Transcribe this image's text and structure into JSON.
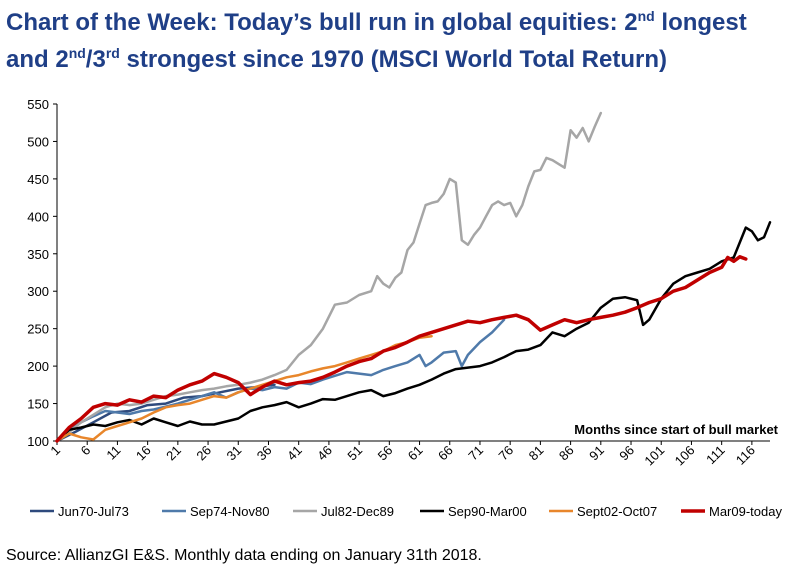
{
  "title": {
    "line1_prefix": "Chart of the Week: Today’s bull run in global equities: 2",
    "line1_sup": "nd",
    "line1_suffix": " longest",
    "line2_a": "and 2",
    "line2_sup1": "nd",
    "line2_b": "/3",
    "line2_sup2": "rd",
    "line2_c": " strongest since 1970 (MSCI World Total Return)"
  },
  "source": "Source: AllianzGI E&S. Monthly data ending on January 31th 2018.",
  "chart_data": {
    "type": "line",
    "title": "Chart of the Week: Today’s bull run in global equities: 2nd longest and 2nd/3rd strongest since 1970 (MSCI World Total Return)",
    "xlabel": "Months since start of bull market",
    "ylabel": "",
    "ylim": [
      100,
      550
    ],
    "yticks": [
      100,
      150,
      200,
      250,
      300,
      350,
      400,
      450,
      500,
      550
    ],
    "xlim": [
      1,
      119
    ],
    "xticks": [
      1,
      6,
      11,
      16,
      21,
      26,
      31,
      36,
      41,
      46,
      51,
      56,
      61,
      66,
      71,
      76,
      81,
      86,
      91,
      96,
      101,
      106,
      111,
      116
    ],
    "legend_position": "bottom",
    "series": [
      {
        "name": "Jun70-Jul73",
        "color": "#2e4a7d",
        "width": 2.5,
        "points": [
          [
            1,
            100
          ],
          [
            4,
            112
          ],
          [
            7,
            125
          ],
          [
            10,
            138
          ],
          [
            13,
            140
          ],
          [
            16,
            148
          ],
          [
            19,
            150
          ],
          [
            22,
            158
          ],
          [
            25,
            160
          ],
          [
            28,
            165
          ],
          [
            31,
            170
          ],
          [
            34,
            172
          ],
          [
            37,
            175
          ]
        ]
      },
      {
        "name": "Sep74-Nov80",
        "color": "#4f7aaa",
        "width": 2.5,
        "points": [
          [
            1,
            100
          ],
          [
            3,
            115
          ],
          [
            5,
            125
          ],
          [
            7,
            133
          ],
          [
            9,
            140
          ],
          [
            11,
            138
          ],
          [
            13,
            136
          ],
          [
            15,
            140
          ],
          [
            17,
            142
          ],
          [
            19,
            146
          ],
          [
            21,
            150
          ],
          [
            23,
            155
          ],
          [
            25,
            160
          ],
          [
            27,
            165
          ],
          [
            29,
            158
          ],
          [
            31,
            165
          ],
          [
            33,
            170
          ],
          [
            35,
            168
          ],
          [
            37,
            172
          ],
          [
            39,
            170
          ],
          [
            41,
            178
          ],
          [
            43,
            176
          ],
          [
            45,
            182
          ],
          [
            47,
            187
          ],
          [
            49,
            192
          ],
          [
            51,
            190
          ],
          [
            53,
            188
          ],
          [
            55,
            195
          ],
          [
            57,
            200
          ],
          [
            59,
            205
          ],
          [
            61,
            215
          ],
          [
            62,
            200
          ],
          [
            63,
            205
          ],
          [
            65,
            218
          ],
          [
            67,
            220
          ],
          [
            68,
            200
          ],
          [
            69,
            215
          ],
          [
            71,
            232
          ],
          [
            73,
            245
          ],
          [
            75,
            262
          ]
        ]
      },
      {
        "name": "Jul82-Dec89",
        "color": "#a6a6a6",
        "width": 2.5,
        "points": [
          [
            1,
            100
          ],
          [
            3,
            112
          ],
          [
            5,
            125
          ],
          [
            7,
            135
          ],
          [
            9,
            145
          ],
          [
            11,
            150
          ],
          [
            13,
            148
          ],
          [
            15,
            150
          ],
          [
            17,
            155
          ],
          [
            19,
            160
          ],
          [
            21,
            162
          ],
          [
            23,
            165
          ],
          [
            25,
            168
          ],
          [
            27,
            170
          ],
          [
            29,
            173
          ],
          [
            31,
            175
          ],
          [
            33,
            178
          ],
          [
            35,
            182
          ],
          [
            37,
            188
          ],
          [
            39,
            195
          ],
          [
            41,
            215
          ],
          [
            43,
            228
          ],
          [
            45,
            250
          ],
          [
            47,
            282
          ],
          [
            49,
            285
          ],
          [
            51,
            295
          ],
          [
            53,
            300
          ],
          [
            54,
            320
          ],
          [
            55,
            310
          ],
          [
            56,
            305
          ],
          [
            57,
            318
          ],
          [
            58,
            325
          ],
          [
            59,
            355
          ],
          [
            60,
            365
          ],
          [
            61,
            390
          ],
          [
            62,
            415
          ],
          [
            63,
            418
          ],
          [
            64,
            420
          ],
          [
            65,
            430
          ],
          [
            66,
            450
          ],
          [
            67,
            445
          ],
          [
            68,
            368
          ],
          [
            69,
            362
          ],
          [
            70,
            375
          ],
          [
            71,
            385
          ],
          [
            72,
            400
          ],
          [
            73,
            415
          ],
          [
            74,
            420
          ],
          [
            75,
            415
          ],
          [
            76,
            418
          ],
          [
            77,
            400
          ],
          [
            78,
            415
          ],
          [
            79,
            440
          ],
          [
            80,
            460
          ],
          [
            81,
            462
          ],
          [
            82,
            478
          ],
          [
            83,
            475
          ],
          [
            84,
            470
          ],
          [
            85,
            465
          ],
          [
            86,
            515
          ],
          [
            87,
            505
          ],
          [
            88,
            518
          ],
          [
            89,
            500
          ],
          [
            90,
            520
          ],
          [
            91,
            538
          ]
        ]
      },
      {
        "name": "Sep90-Mar00",
        "color": "#000000",
        "width": 2.5,
        "points": [
          [
            1,
            100
          ],
          [
            3,
            115
          ],
          [
            5,
            118
          ],
          [
            7,
            122
          ],
          [
            9,
            120
          ],
          [
            11,
            125
          ],
          [
            13,
            128
          ],
          [
            15,
            122
          ],
          [
            17,
            130
          ],
          [
            19,
            125
          ],
          [
            21,
            120
          ],
          [
            23,
            126
          ],
          [
            25,
            122
          ],
          [
            27,
            122
          ],
          [
            29,
            126
          ],
          [
            31,
            130
          ],
          [
            33,
            140
          ],
          [
            35,
            145
          ],
          [
            37,
            148
          ],
          [
            39,
            152
          ],
          [
            41,
            145
          ],
          [
            43,
            150
          ],
          [
            45,
            156
          ],
          [
            47,
            155
          ],
          [
            49,
            160
          ],
          [
            51,
            165
          ],
          [
            53,
            168
          ],
          [
            55,
            160
          ],
          [
            57,
            164
          ],
          [
            59,
            170
          ],
          [
            61,
            175
          ],
          [
            63,
            182
          ],
          [
            65,
            190
          ],
          [
            67,
            196
          ],
          [
            69,
            198
          ],
          [
            71,
            200
          ],
          [
            73,
            205
          ],
          [
            75,
            212
          ],
          [
            77,
            220
          ],
          [
            79,
            222
          ],
          [
            81,
            228
          ],
          [
            83,
            245
          ],
          [
            85,
            240
          ],
          [
            87,
            250
          ],
          [
            89,
            258
          ],
          [
            91,
            278
          ],
          [
            93,
            290
          ],
          [
            95,
            292
          ],
          [
            97,
            288
          ],
          [
            98,
            255
          ],
          [
            99,
            262
          ],
          [
            101,
            290
          ],
          [
            103,
            310
          ],
          [
            105,
            320
          ],
          [
            107,
            325
          ],
          [
            109,
            330
          ],
          [
            111,
            340
          ],
          [
            113,
            345
          ],
          [
            115,
            385
          ],
          [
            116,
            380
          ],
          [
            117,
            368
          ],
          [
            118,
            372
          ],
          [
            119,
            392
          ]
        ]
      },
      {
        "name": "Sept02-Oct07",
        "color": "#e8862b",
        "width": 2.5,
        "points": [
          [
            1,
            100
          ],
          [
            3,
            110
          ],
          [
            5,
            105
          ],
          [
            7,
            102
          ],
          [
            9,
            115
          ],
          [
            11,
            120
          ],
          [
            13,
            125
          ],
          [
            15,
            130
          ],
          [
            17,
            138
          ],
          [
            19,
            145
          ],
          [
            21,
            148
          ],
          [
            23,
            150
          ],
          [
            25,
            155
          ],
          [
            27,
            160
          ],
          [
            29,
            158
          ],
          [
            31,
            165
          ],
          [
            33,
            170
          ],
          [
            35,
            175
          ],
          [
            37,
            180
          ],
          [
            39,
            185
          ],
          [
            41,
            188
          ],
          [
            43,
            193
          ],
          [
            45,
            197
          ],
          [
            47,
            200
          ],
          [
            49,
            205
          ],
          [
            51,
            210
          ],
          [
            53,
            215
          ],
          [
            55,
            220
          ],
          [
            57,
            228
          ],
          [
            59,
            232
          ],
          [
            61,
            238
          ],
          [
            63,
            240
          ]
        ]
      },
      {
        "name": "Mar09-today",
        "color": "#c00000",
        "width": 3.5,
        "points": [
          [
            1,
            100
          ],
          [
            3,
            118
          ],
          [
            5,
            130
          ],
          [
            7,
            145
          ],
          [
            9,
            150
          ],
          [
            11,
            148
          ],
          [
            13,
            155
          ],
          [
            15,
            152
          ],
          [
            17,
            160
          ],
          [
            19,
            158
          ],
          [
            21,
            168
          ],
          [
            23,
            175
          ],
          [
            25,
            180
          ],
          [
            27,
            190
          ],
          [
            29,
            185
          ],
          [
            31,
            178
          ],
          [
            33,
            162
          ],
          [
            35,
            172
          ],
          [
            37,
            180
          ],
          [
            39,
            175
          ],
          [
            41,
            178
          ],
          [
            43,
            180
          ],
          [
            45,
            185
          ],
          [
            47,
            192
          ],
          [
            49,
            200
          ],
          [
            51,
            206
          ],
          [
            53,
            210
          ],
          [
            55,
            220
          ],
          [
            57,
            225
          ],
          [
            59,
            232
          ],
          [
            61,
            240
          ],
          [
            63,
            245
          ],
          [
            65,
            250
          ],
          [
            67,
            255
          ],
          [
            69,
            260
          ],
          [
            71,
            258
          ],
          [
            73,
            262
          ],
          [
            75,
            265
          ],
          [
            77,
            268
          ],
          [
            79,
            262
          ],
          [
            81,
            248
          ],
          [
            83,
            255
          ],
          [
            85,
            262
          ],
          [
            87,
            258
          ],
          [
            89,
            262
          ],
          [
            91,
            265
          ],
          [
            93,
            268
          ],
          [
            95,
            272
          ],
          [
            97,
            278
          ],
          [
            99,
            285
          ],
          [
            101,
            290
          ],
          [
            103,
            300
          ],
          [
            105,
            305
          ],
          [
            107,
            315
          ],
          [
            109,
            325
          ],
          [
            111,
            332
          ],
          [
            112,
            345
          ],
          [
            113,
            340
          ],
          [
            114,
            346
          ],
          [
            115,
            343
          ]
        ]
      }
    ]
  }
}
